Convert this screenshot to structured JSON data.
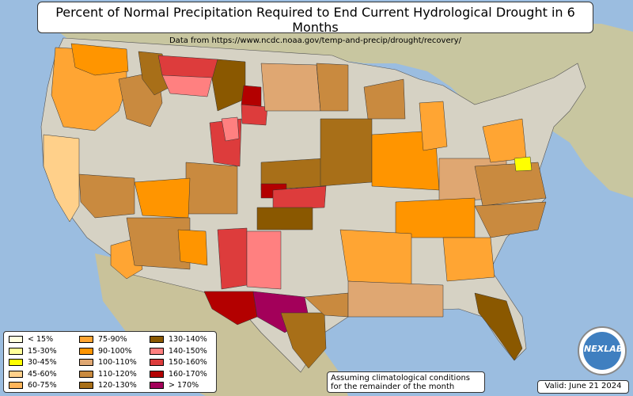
{
  "header": {
    "title": "Percent of Normal Precipitation Required to End Current Hydrological Drought in 6 Months",
    "subtitle": "Data from https://www.ncdc.noaa.gov/temp-and-precip/drought/recovery/"
  },
  "legend": {
    "items": [
      {
        "label": "< 15%",
        "color": "#ffffe0"
      },
      {
        "label": "15-30%",
        "color": "#ffff99"
      },
      {
        "label": "30-45%",
        "color": "#ffff00"
      },
      {
        "label": "45-60%",
        "color": "#ffd08a"
      },
      {
        "label": "60-75%",
        "color": "#ffb55a"
      },
      {
        "label": "75-90%",
        "color": "#ffa533"
      },
      {
        "label": "90-100%",
        "color": "#ff9500"
      },
      {
        "label": "100-110%",
        "color": "#dfa772"
      },
      {
        "label": "110-120%",
        "color": "#c98a3f"
      },
      {
        "label": "120-130%",
        "color": "#a86f18"
      },
      {
        "label": "130-140%",
        "color": "#8a5800"
      },
      {
        "label": "140-150%",
        "color": "#ff8080"
      },
      {
        "label": "150-160%",
        "color": "#dd3c3c"
      },
      {
        "label": "160-170%",
        "color": "#b30000"
      },
      {
        "label": "> 170%",
        "color": "#a3005a"
      }
    ]
  },
  "note": {
    "line1": "Assuming climatological conditions",
    "line2": "for the remainder of the month"
  },
  "valid": "Valid: June 21 2024",
  "logo": {
    "text": "NEXLAB",
    "icon": "nexlab-globe-logo"
  }
}
